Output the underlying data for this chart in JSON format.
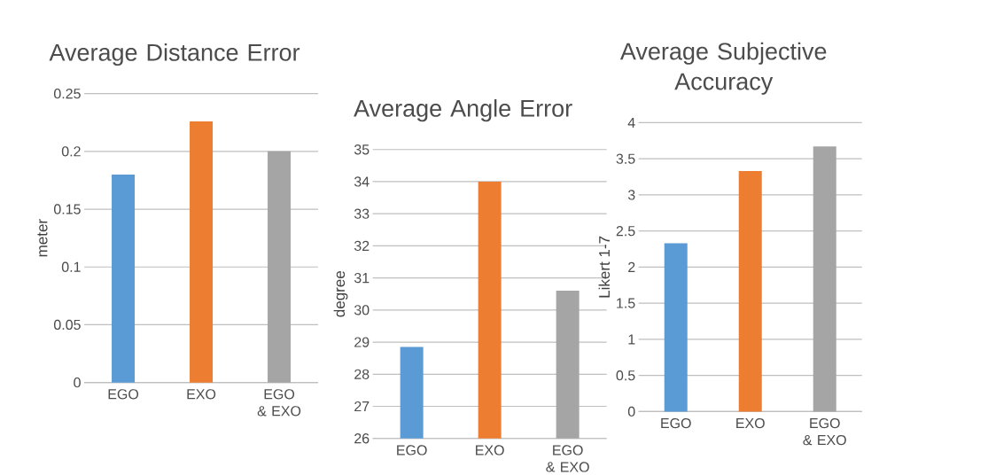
{
  "chart_data": [
    {
      "type": "bar",
      "title": "Average Distance Error",
      "ylabel": "meter",
      "categories": [
        "EGO",
        "EXO",
        "EGO & EXO"
      ],
      "values": [
        0.18,
        0.226,
        0.2
      ],
      "colors": [
        "#5b9bd5",
        "#ed7d31",
        "#a5a5a5"
      ],
      "ylim": [
        0,
        0.25
      ],
      "yticks": [
        0,
        0.05,
        0.1,
        0.15,
        0.2,
        0.25
      ],
      "grid": "y"
    },
    {
      "type": "bar",
      "title": "Average Angle Error",
      "ylabel": "degree",
      "categories": [
        "EGO",
        "EXO",
        "EGO & EXO"
      ],
      "values": [
        28.85,
        34.0,
        30.6
      ],
      "colors": [
        "#5b9bd5",
        "#ed7d31",
        "#a5a5a5"
      ],
      "ylim": [
        26,
        35
      ],
      "yticks": [
        26,
        27,
        28,
        29,
        30,
        31,
        32,
        33,
        34,
        35
      ],
      "grid": "y"
    },
    {
      "type": "bar",
      "title": "Average Subjective Accuracy",
      "ylabel": "Likert 1-7",
      "categories": [
        "EGO",
        "EXO",
        "EGO & EXO"
      ],
      "values": [
        2.33,
        3.33,
        3.67
      ],
      "colors": [
        "#5b9bd5",
        "#ed7d31",
        "#a5a5a5"
      ],
      "ylim": [
        0,
        4
      ],
      "yticks": [
        0,
        0.5,
        1,
        1.5,
        2,
        2.5,
        3,
        3.5,
        4
      ],
      "grid": "y"
    }
  ]
}
